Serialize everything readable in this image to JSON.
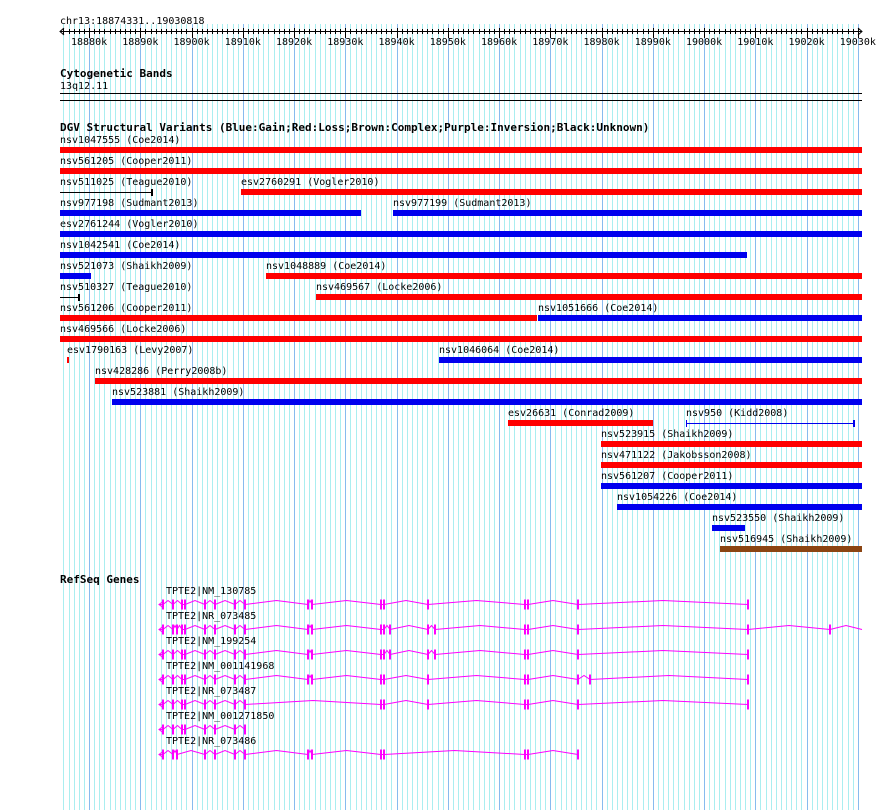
{
  "location": "chr13:18874331..19030818",
  "view": {
    "start": 18874331,
    "end": 19030818
  },
  "ruler": {
    "ticks_kb": [
      18880,
      18890,
      18900,
      18910,
      18920,
      18930,
      18940,
      18950,
      18960,
      18970,
      18980,
      18990,
      19000,
      19010,
      19020,
      19030
    ],
    "suffix": "k"
  },
  "cytoband": {
    "title": "Cytogenetic Bands",
    "band": "13q12.11"
  },
  "dgv": {
    "title": "DGV Structural Variants (Blue:Gain;Red:Loss;Brown:Complex;Purple:Inversion;Black:Unknown)",
    "colors": {
      "gain": "#0000ee",
      "loss": "#ff0000",
      "complex": "#8b4513",
      "unknown": "#000000"
    },
    "rows": [
      [
        {
          "label": "nsv1047555 (Coe2014)",
          "start": 18874331,
          "end": 19030818,
          "type": "loss"
        }
      ],
      [
        {
          "label": "nsv561205 (Cooper2011)",
          "start": 18874331,
          "end": 19030818,
          "type": "loss"
        }
      ],
      [
        {
          "label": "nsv511025 (Teague2010)",
          "start": 18874331,
          "end": 18892080,
          "type": "unknown"
        },
        {
          "label": "esv2760291 (Vogler2010)",
          "start": 18909645,
          "end": 19030818,
          "type": "loss"
        }
      ],
      [
        {
          "label": "nsv977198 (Sudmant2013)",
          "start": 18874331,
          "end": 18933057,
          "type": "gain"
        },
        {
          "label": "nsv977199 (Sudmant2013)",
          "start": 18939300,
          "end": 19030818,
          "type": "gain"
        }
      ],
      [
        {
          "label": "esv2761244 (Vogler2010)",
          "start": 18874331,
          "end": 19030818,
          "type": "gain"
        }
      ],
      [
        {
          "label": "nsv1042541 (Coe2014)",
          "start": 18874331,
          "end": 19008365,
          "type": "gain"
        }
      ],
      [
        {
          "label": "nsv521073 (Shaikh2009)",
          "start": 18874331,
          "end": 18880380,
          "type": "gain"
        },
        {
          "label": "nsv1048889 (Coe2014)",
          "start": 18914522,
          "end": 19030818,
          "type": "loss"
        }
      ],
      [
        {
          "label": "nsv510327 (Teague2010)",
          "start": 18874331,
          "end": 18877843,
          "type": "unknown"
        },
        {
          "label": "nsv469567 (Locke2006)",
          "start": 18924277,
          "end": 19030818,
          "type": "loss"
        }
      ],
      [
        {
          "label": "nsv561206 (Cooper2011)",
          "start": 18874331,
          "end": 18967393,
          "type": "loss"
        },
        {
          "label": "nsv1051666 (Coe2014)",
          "start": 18967588,
          "end": 19030818,
          "type": "gain"
        }
      ],
      [
        {
          "label": "nsv469566 (Locke2006)",
          "start": 18874331,
          "end": 19030818,
          "type": "loss"
        }
      ],
      [
        {
          "label": "esv1790163 (Levy2007)",
          "start": 18875697,
          "end": 18876087,
          "type": "loss"
        },
        {
          "label": "nsv1046064 (Coe2014)",
          "start": 18948275,
          "end": 19030818,
          "type": "gain"
        }
      ],
      [
        {
          "label": "nsv428286 (Perry2008b)",
          "start": 18881160,
          "end": 19030818,
          "type": "loss"
        }
      ],
      [
        {
          "label": "nsv523881 (Shaikh2009)",
          "start": 18884477,
          "end": 19030818,
          "type": "gain"
        }
      ],
      [
        {
          "label": "esv26631 (Conrad2009)",
          "start": 18961735,
          "end": 18990024,
          "type": "loss"
        },
        {
          "label": "nsv950 (Kidd2008)",
          "start": 18996462,
          "end": 19029042,
          "type": "gain_thin"
        }
      ],
      [
        {
          "label": "nsv523915 (Shaikh2009)",
          "start": 18979880,
          "end": 19030818,
          "type": "loss"
        }
      ],
      [
        {
          "label": "nsv471122 (Jakobsson2008)",
          "start": 18979880,
          "end": 19030818,
          "type": "loss"
        }
      ],
      [
        {
          "label": "nsv561207 (Cooper2011)",
          "start": 18979880,
          "end": 19030818,
          "type": "gain"
        }
      ],
      [
        {
          "label": "nsv1054226 (Coe2014)",
          "start": 18983002,
          "end": 19030818,
          "type": "gain"
        }
      ],
      [
        {
          "label": "nsv523550 (Shaikh2009)",
          "start": 19001536,
          "end": 19007974,
          "type": "gain"
        }
      ],
      [
        {
          "label": "nsv516945 (Shaikh2009)",
          "start": 19003097,
          "end": 19030818,
          "type": "complex"
        }
      ]
    ]
  },
  "refseq": {
    "title": "RefSeq Genes",
    "color": "#ff00ff",
    "transcripts": [
      {
        "label": "TPTE2|NM_130785",
        "end_kb": 19008.56,
        "exons_kb": [
          18894.43,
          18896.38,
          18898.13,
          18898.72,
          18902.62,
          18904.57,
          18908.47,
          18910.42,
          18922.72,
          18923.5,
          18936.96,
          18937.54,
          18946.13,
          18965.05,
          18965.64,
          18975.39,
          19008.56
        ]
      },
      {
        "label": "TPTE2|NR_073485",
        "end_kb": 19030.8,
        "exons_kb": [
          18894.43,
          18896.38,
          18897.2,
          18898.13,
          18898.72,
          18902.62,
          18904.57,
          18908.47,
          18910.42,
          18922.72,
          18923.5,
          18936.96,
          18937.54,
          18938.7,
          18946.13,
          18947.5,
          18965.05,
          18965.64,
          18975.39,
          19008.56,
          19024.56
        ]
      },
      {
        "label": "TPTE2|NM_199254",
        "end_kb": 19008.56,
        "exons_kb": [
          18894.43,
          18896.38,
          18898.13,
          18898.72,
          18902.62,
          18904.57,
          18908.47,
          18910.42,
          18922.72,
          18923.5,
          18936.96,
          18937.54,
          18938.7,
          18946.13,
          18947.5,
          18965.05,
          18965.64,
          18975.39,
          19008.56
        ]
      },
      {
        "label": "TPTE2|NM_001141968",
        "end_kb": 19008.56,
        "exons_kb": [
          18894.43,
          18896.38,
          18898.13,
          18898.72,
          18902.62,
          18904.57,
          18908.47,
          18910.42,
          18922.72,
          18923.5,
          18936.96,
          18937.54,
          18946.13,
          18965.05,
          18965.64,
          18975.39,
          18977.73,
          19008.56
        ]
      },
      {
        "label": "TPTE2|NR_073487",
        "end_kb": 19008.56,
        "exons_kb": [
          18894.43,
          18896.38,
          18898.13,
          18898.72,
          18902.62,
          18904.57,
          18908.47,
          18910.42,
          18936.96,
          18937.54,
          18946.13,
          18965.05,
          18965.64,
          18975.39,
          19008.56
        ]
      },
      {
        "label": "TPTE2|NM_001271850",
        "end_kb": 18910.42,
        "exons_kb": [
          18894.43,
          18896.38,
          18898.13,
          18898.72,
          18902.62,
          18904.57,
          18908.47,
          18910.42
        ]
      },
      {
        "label": "TPTE2|NR_073486",
        "end_kb": 18975.39,
        "exons_kb": [
          18894.43,
          18896.38,
          18897.2,
          18902.62,
          18904.57,
          18908.47,
          18910.42,
          18922.72,
          18923.5,
          18936.96,
          18937.54,
          18965.05,
          18965.64,
          18975.39
        ]
      }
    ]
  }
}
